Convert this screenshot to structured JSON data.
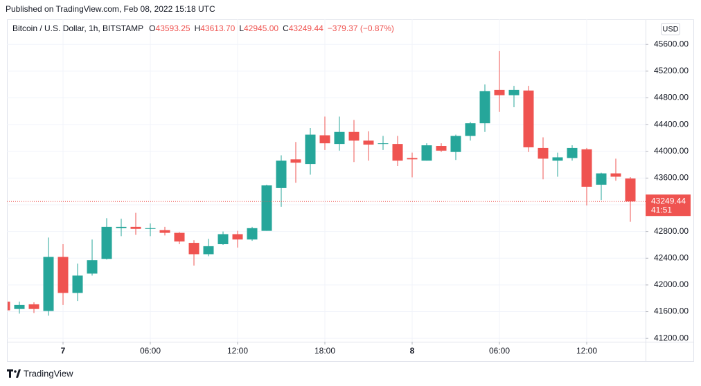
{
  "published": "Published on TradingView.com, Feb 08, 2022 15:18 UTC",
  "brand": "TradingView",
  "chart_data": {
    "type": "candlestick",
    "title": "Bitcoin / U.S. Dollar, 1h, BITSTAMP",
    "ohlc_header": [
      {
        "letter": "O",
        "text": "43593.25"
      },
      {
        "letter": "H",
        "text": "43613.70"
      },
      {
        "letter": "L",
        "text": "42945.00"
      },
      {
        "letter": "C",
        "text": "43249.44"
      }
    ],
    "change": "−379.37 (−0.87%)",
    "currency": "USD",
    "categories": [
      null,
      null,
      null,
      null,
      "7",
      null,
      null,
      null,
      null,
      null,
      "06:00",
      null,
      null,
      null,
      null,
      null,
      "12:00",
      null,
      null,
      null,
      null,
      null,
      "18:00",
      null,
      null,
      null,
      null,
      null,
      "8",
      null,
      null,
      null,
      null,
      null,
      "06:00",
      null,
      null,
      null,
      null,
      null,
      "12:00",
      null,
      null,
      null
    ],
    "open": [
      41750,
      41640,
      41710,
      41610,
      42420,
      41880,
      42170,
      42390,
      42850,
      42870,
      42840,
      42820,
      42780,
      42630,
      42460,
      42610,
      42760,
      42680,
      42810,
      43450,
      43880,
      43810,
      44240,
      44110,
      44290,
      44160,
      44110,
      44110,
      43900,
      43860,
      44080,
      43990,
      44230,
      44420,
      44920,
      44840,
      44910,
      44050,
      43860,
      43900,
      44030,
      43500,
      43670,
      43593.25
    ],
    "high": [
      41760,
      41750,
      41740,
      42710,
      42610,
      42320,
      42680,
      43000,
      42990,
      43080,
      42920,
      42870,
      42790,
      42670,
      42690,
      42800,
      42810,
      42870,
      43500,
      43940,
      44140,
      44350,
      44520,
      44520,
      44470,
      44300,
      44230,
      44230,
      43980,
      44120,
      44120,
      44250,
      44440,
      45000,
      45500,
      44980,
      44980,
      44210,
      43980,
      44090,
      44050,
      43680,
      43890,
      43613.7
    ],
    "low": [
      41600,
      41570,
      41580,
      41540,
      41700,
      41760,
      42140,
      42380,
      42730,
      42750,
      42730,
      42740,
      42610,
      42290,
      42430,
      42600,
      42560,
      42660,
      42810,
      43170,
      43530,
      43650,
      44020,
      44010,
      43840,
      43860,
      44020,
      43780,
      43610,
      43860,
      43990,
      43870,
      44160,
      44290,
      44590,
      44660,
      43990,
      43580,
      43620,
      43860,
      43190,
      43270,
      43560,
      42945.0
    ],
    "close": [
      41620,
      41700,
      41640,
      42420,
      41880,
      42140,
      42370,
      42870,
      42870,
      42840,
      42850,
      42780,
      42650,
      42460,
      42580,
      42760,
      42680,
      42850,
      43490,
      43860,
      43830,
      44250,
      44120,
      44290,
      44160,
      44100,
      44120,
      43860,
      43880,
      44090,
      44010,
      44230,
      44420,
      44900,
      44840,
      44920,
      44060,
      43890,
      43910,
      44050,
      43470,
      43670,
      43620,
      43249.44
    ],
    "up_color": "#26a69a",
    "down_color": "#ef5350",
    "ylim": [
      41150,
      45975
    ],
    "yticks": [
      {
        "value": 41200,
        "label": "41200.00"
      },
      {
        "value": 41600,
        "label": "41600.00"
      },
      {
        "value": 42000,
        "label": "42000.00"
      },
      {
        "value": 42400,
        "label": "42400.00"
      },
      {
        "value": 42800,
        "label": "42800.00"
      },
      {
        "value": 43200,
        "label": "43200.00"
      },
      {
        "value": 43600,
        "label": "43600.00"
      },
      {
        "value": 44000,
        "label": "44000.00"
      },
      {
        "value": 44400,
        "label": "44400.00"
      },
      {
        "value": 44800,
        "label": "44800.00"
      },
      {
        "value": 45200,
        "label": "45200.00"
      },
      {
        "value": 45600,
        "label": "45600.00"
      }
    ],
    "last_price": {
      "value": 43249.44,
      "label": "43249.44"
    },
    "countdown": "41:51",
    "grid": true
  }
}
